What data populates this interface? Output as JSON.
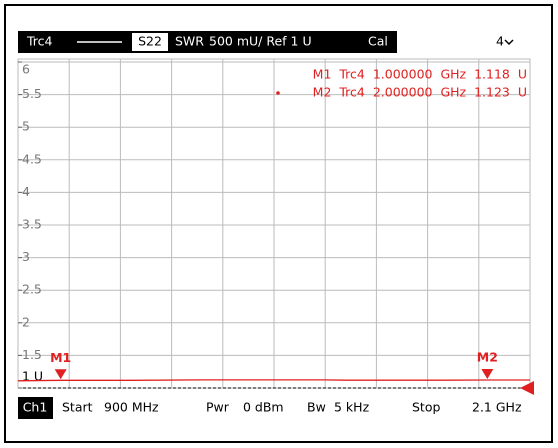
{
  "header": {
    "trace": "Trc4",
    "param": "S22",
    "format": "SWR",
    "scale": "500 mU/ Ref 1 U",
    "cal": "Cal",
    "channel_count": "4"
  },
  "chart_data": {
    "type": "line",
    "x": [
      0.9,
      1.0,
      1.17,
      1.33,
      1.62,
      1.67,
      1.9,
      2.0,
      2.1
    ],
    "series": [
      {
        "name": "Trc4",
        "color": "#e02020",
        "values": [
          1.11,
          1.118,
          1.118,
          1.125,
          1.125,
          1.12,
          1.12,
          1.123,
          1.123
        ]
      }
    ],
    "xlim": [
      0.9,
      2.1
    ],
    "ylim": [
      1,
      6
    ],
    "yticks": [
      {
        "value": 1,
        "label": "1 U"
      },
      1.5,
      2,
      2.5,
      3,
      3.5,
      4,
      4.5,
      5,
      5.5,
      6
    ],
    "grid": true,
    "markers": [
      {
        "label": "M1",
        "x": 1.0,
        "value": 1.118
      },
      {
        "label": "M2",
        "x": 2.0,
        "value": 1.123
      }
    ],
    "readouts": [
      "M1 Trc4 1.000000 GHz 1.118 U",
      "M2 Trc4 2.000000 GHz 1.123 U"
    ]
  },
  "footer": {
    "channel": "Ch1",
    "start_label": "Start",
    "start": "900 MHz",
    "pwr_label": "Pwr",
    "pwr": "0 dBm",
    "bw_label": "Bw",
    "bw": "5 kHz",
    "stop_label": "Stop",
    "stop": "2.1 GHz"
  }
}
